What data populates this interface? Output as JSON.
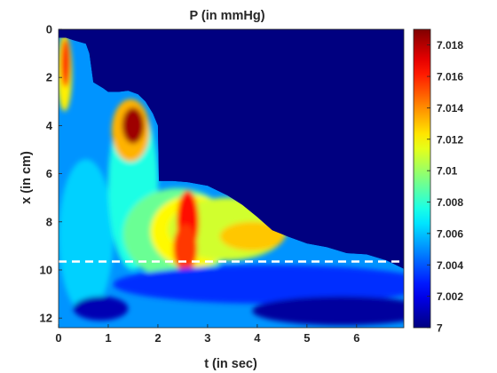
{
  "chart_data": {
    "type": "heatmap",
    "title": "P (in mmHg)",
    "xlabel": "t (in sec)",
    "ylabel": "x (in cm)",
    "xlim": [
      0,
      6.95
    ],
    "ylim": [
      12.4,
      0
    ],
    "y_direction": "reversed",
    "xticks": [
      0,
      1,
      2,
      3,
      4,
      5,
      6
    ],
    "xtick_labels": [
      "0",
      "1",
      "2",
      "3",
      "4",
      "5",
      "6"
    ],
    "yticks": [
      0,
      2,
      4,
      6,
      8,
      10,
      12
    ],
    "ytick_labels": [
      "0",
      "2",
      "4",
      "6",
      "8",
      "10",
      "12"
    ],
    "colormap": "jet",
    "clim": [
      7.0,
      7.019
    ],
    "colorbar_ticks": [
      7,
      7.002,
      7.004,
      7.006,
      7.008,
      7.01,
      7.012,
      7.014,
      7.016,
      7.018
    ],
    "colorbar_labels": [
      "7",
      "7.002",
      "7.004",
      "7.006",
      "7.008",
      "7.01",
      "7.012",
      "7.014",
      "7.016",
      "7.018"
    ],
    "grid": false,
    "reference_line": {
      "style": "dashed",
      "color": "#ffffff",
      "x_value": 9.65
    },
    "front_boundary": [
      [
        0.0,
        0.35
      ],
      [
        0.15,
        0.35
      ],
      [
        0.3,
        0.45
      ],
      [
        0.55,
        0.6
      ],
      [
        0.62,
        1.0
      ],
      [
        0.7,
        2.2
      ],
      [
        0.9,
        2.45
      ],
      [
        1.0,
        2.6
      ],
      [
        1.2,
        2.6
      ],
      [
        1.4,
        2.55
      ],
      [
        1.6,
        2.7
      ],
      [
        1.75,
        3.0
      ],
      [
        1.9,
        3.5
      ],
      [
        2.0,
        4.0
      ],
      [
        2.02,
        6.3
      ],
      [
        2.3,
        6.3
      ],
      [
        2.6,
        6.35
      ],
      [
        3.0,
        6.5
      ],
      [
        3.4,
        6.9
      ],
      [
        3.7,
        7.3
      ],
      [
        4.0,
        7.8
      ],
      [
        4.3,
        8.35
      ],
      [
        4.6,
        8.6
      ],
      [
        5.0,
        8.9
      ],
      [
        5.4,
        9.05
      ],
      [
        5.8,
        9.3
      ],
      [
        6.2,
        9.35
      ],
      [
        6.6,
        9.6
      ],
      [
        6.95,
        9.95
      ]
    ],
    "hotspots": [
      {
        "t": 0.12,
        "x": 1.6,
        "value": 7.017
      },
      {
        "t": 1.45,
        "x": 4.0,
        "value": 7.019
      },
      {
        "t": 2.6,
        "x": 8.2,
        "value": 7.0165
      },
      {
        "t": 3.6,
        "x": 8.3,
        "value": 7.012
      },
      {
        "t": 0.9,
        "x": 11.2,
        "value": 7.001
      }
    ]
  }
}
